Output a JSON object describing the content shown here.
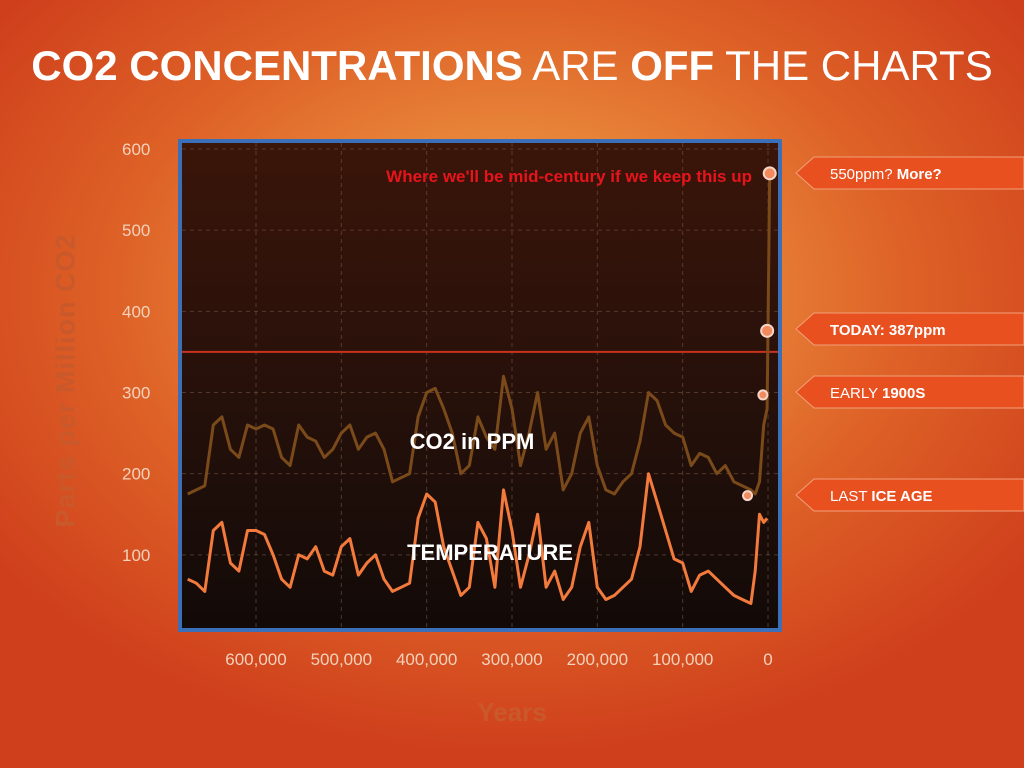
{
  "title": {
    "part1": "CO2 CONCENTRATIONS",
    "part2": "ARE",
    "part3": "OFF",
    "part4": "THE CHARTS"
  },
  "chart_data": {
    "type": "line",
    "xlabel": "Years",
    "ylabel": "Parts per Million CO2",
    "ylim": [
      0,
      600
    ],
    "yticks": [
      100,
      200,
      300,
      400,
      500,
      600
    ],
    "xticks": [
      600000,
      500000,
      400000,
      300000,
      200000,
      100000,
      0
    ],
    "xtick_labels": [
      "600,000",
      "500,000",
      "400,000",
      "300,000",
      "200,000",
      "100,000",
      "0"
    ],
    "xlim": [
      680000,
      -2000
    ],
    "grid": true,
    "reference_line": 350,
    "series": [
      {
        "name": "CO2 in PPM",
        "color": "#7a4a1a",
        "x": [
          680000,
          670000,
          660000,
          650000,
          640000,
          630000,
          620000,
          610000,
          600000,
          590000,
          580000,
          570000,
          560000,
          550000,
          540000,
          530000,
          520000,
          510000,
          500000,
          490000,
          480000,
          470000,
          460000,
          450000,
          440000,
          430000,
          420000,
          410000,
          400000,
          390000,
          380000,
          370000,
          360000,
          350000,
          340000,
          330000,
          320000,
          310000,
          300000,
          290000,
          280000,
          270000,
          260000,
          250000,
          240000,
          230000,
          220000,
          210000,
          200000,
          190000,
          180000,
          170000,
          160000,
          150000,
          140000,
          130000,
          120000,
          110000,
          100000,
          90000,
          80000,
          70000,
          60000,
          50000,
          40000,
          30000,
          20000,
          15000,
          10000,
          5000,
          1000
        ],
        "y": [
          175,
          180,
          185,
          260,
          270,
          230,
          220,
          260,
          255,
          260,
          255,
          220,
          210,
          260,
          245,
          240,
          220,
          230,
          250,
          260,
          230,
          245,
          250,
          230,
          190,
          195,
          200,
          270,
          300,
          305,
          280,
          250,
          200,
          210,
          270,
          245,
          230,
          320,
          280,
          210,
          250,
          300,
          230,
          250,
          180,
          200,
          250,
          270,
          210,
          180,
          175,
          190,
          200,
          240,
          300,
          290,
          260,
          250,
          245,
          210,
          225,
          220,
          200,
          210,
          190,
          185,
          180,
          175,
          190,
          260,
          280
        ]
      },
      {
        "name": "TEMPERATURE",
        "color": "#f27a3c",
        "x": [
          680000,
          670000,
          660000,
          650000,
          640000,
          630000,
          620000,
          610000,
          600000,
          590000,
          580000,
          570000,
          560000,
          550000,
          540000,
          530000,
          520000,
          510000,
          500000,
          490000,
          480000,
          470000,
          460000,
          450000,
          440000,
          430000,
          420000,
          410000,
          400000,
          390000,
          380000,
          370000,
          360000,
          350000,
          340000,
          330000,
          320000,
          310000,
          300000,
          290000,
          280000,
          270000,
          260000,
          250000,
          240000,
          230000,
          220000,
          210000,
          200000,
          190000,
          180000,
          170000,
          160000,
          150000,
          140000,
          130000,
          120000,
          110000,
          100000,
          90000,
          80000,
          70000,
          60000,
          50000,
          40000,
          30000,
          20000,
          15000,
          10000,
          5000,
          1000
        ],
        "y": [
          70,
          65,
          55,
          130,
          140,
          90,
          80,
          130,
          130,
          125,
          100,
          70,
          60,
          100,
          95,
          110,
          80,
          75,
          110,
          120,
          75,
          90,
          100,
          70,
          55,
          60,
          65,
          145,
          175,
          165,
          110,
          80,
          50,
          60,
          140,
          120,
          60,
          180,
          130,
          60,
          100,
          150,
          60,
          80,
          45,
          60,
          110,
          140,
          60,
          45,
          50,
          60,
          70,
          110,
          200,
          165,
          130,
          95,
          90,
          55,
          75,
          80,
          70,
          60,
          50,
          45,
          40,
          80,
          150,
          140,
          145
        ]
      }
    ],
    "annotations": [
      {
        "text": "Where we'll be mid-century if we keep this up",
        "x": -2000,
        "y": 570
      },
      {
        "text": "CO2 in PPM",
        "series": "CO2 in PPM"
      },
      {
        "text": "TEMPERATURE",
        "series": "TEMPERATURE"
      }
    ],
    "markers": [
      {
        "x": -2000,
        "y": 570
      },
      {
        "x": 1000,
        "y": 376
      },
      {
        "x": 6000,
        "y": 297
      },
      {
        "x": 24000,
        "y": 173
      }
    ],
    "callouts": [
      {
        "normal": "550ppm?",
        "bold": "More?",
        "y": 570
      },
      {
        "normal": "",
        "bold": "TODAY: 387ppm",
        "y": 387
      },
      {
        "normal": "EARLY",
        "bold": "1900S",
        "y": 297
      },
      {
        "normal": "LAST",
        "bold": "ICE AGE",
        "y": 173
      }
    ]
  }
}
